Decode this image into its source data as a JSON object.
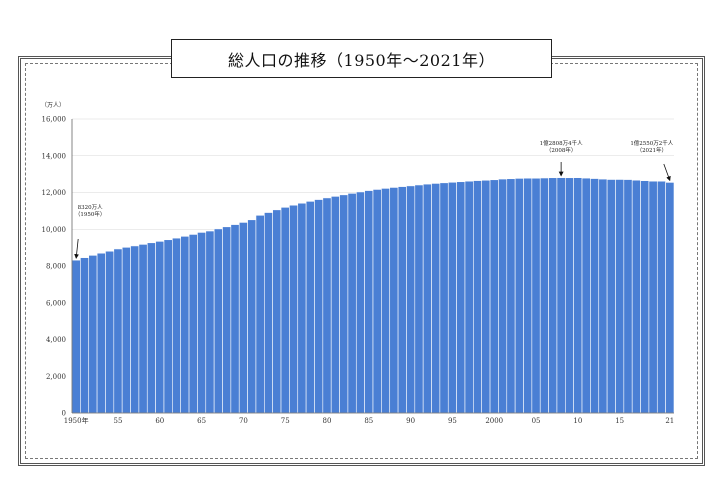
{
  "chart_data": {
    "type": "bar",
    "title": "総人口の推移（1950年～2021年）",
    "ylabel": "（万人）",
    "xlabel": "",
    "ylim": [
      0,
      16000
    ],
    "yticks": [
      "0",
      "2,000",
      "4,000",
      "6,000",
      "8,000",
      "10,000",
      "12,000",
      "14,000",
      "16,000"
    ],
    "xtick_labels": [
      {
        "year": 1950,
        "label": "1950年"
      },
      {
        "year": 1955,
        "label": "55"
      },
      {
        "year": 1960,
        "label": "60"
      },
      {
        "year": 1965,
        "label": "65"
      },
      {
        "year": 1970,
        "label": "70"
      },
      {
        "year": 1975,
        "label": "75"
      },
      {
        "year": 1980,
        "label": "80"
      },
      {
        "year": 1985,
        "label": "85"
      },
      {
        "year": 1990,
        "label": "90"
      },
      {
        "year": 1995,
        "label": "95"
      },
      {
        "year": 2000,
        "label": "2000"
      },
      {
        "year": 2005,
        "label": "05"
      },
      {
        "year": 2010,
        "label": "10"
      },
      {
        "year": 2015,
        "label": "15"
      },
      {
        "year": 2021,
        "label": "21"
      }
    ],
    "grid": true,
    "bar_color": "#4a7fd4",
    "x": [
      1950,
      1951,
      1952,
      1953,
      1954,
      1955,
      1956,
      1957,
      1958,
      1959,
      1960,
      1961,
      1962,
      1963,
      1964,
      1965,
      1966,
      1967,
      1968,
      1969,
      1970,
      1971,
      1972,
      1973,
      1974,
      1975,
      1976,
      1977,
      1978,
      1979,
      1980,
      1981,
      1982,
      1983,
      1984,
      1985,
      1986,
      1987,
      1988,
      1989,
      1990,
      1991,
      1992,
      1993,
      1994,
      1995,
      1996,
      1997,
      1998,
      1999,
      2000,
      2001,
      2002,
      2003,
      2004,
      2005,
      2006,
      2007,
      2008,
      2009,
      2010,
      2011,
      2012,
      2013,
      2014,
      2015,
      2016,
      2017,
      2018,
      2019,
      2020,
      2021
    ],
    "values": [
      8320,
      8454,
      8581,
      8697,
      8805,
      8928,
      9018,
      9093,
      9177,
      9264,
      9342,
      9429,
      9518,
      9616,
      9718,
      9828,
      9904,
      10020,
      10133,
      10254,
      10372,
      10515,
      10760,
      10910,
      11057,
      11194,
      11309,
      11417,
      11519,
      11616,
      11706,
      11790,
      11873,
      11954,
      12031,
      12105,
      12166,
      12224,
      12275,
      12321,
      12361,
      12410,
      12457,
      12494,
      12527,
      12557,
      12586,
      12616,
      12647,
      12667,
      12693,
      12732,
      12749,
      12769,
      12779,
      12777,
      12790,
      12803,
      12808,
      12803,
      12806,
      12783,
      12759,
      12730,
      12708,
      12709,
      12704,
      12671,
      12644,
      12617,
      12615,
      12550
    ],
    "annotations": [
      {
        "line1": "8320万人",
        "line2": "（1950年）",
        "year": 1950
      },
      {
        "line1": "1億2808万4千人",
        "line2": "（2008年）",
        "year": 2008
      },
      {
        "line1": "1億2550万2千人",
        "line2": "（2021年）",
        "year": 2021
      }
    ]
  }
}
